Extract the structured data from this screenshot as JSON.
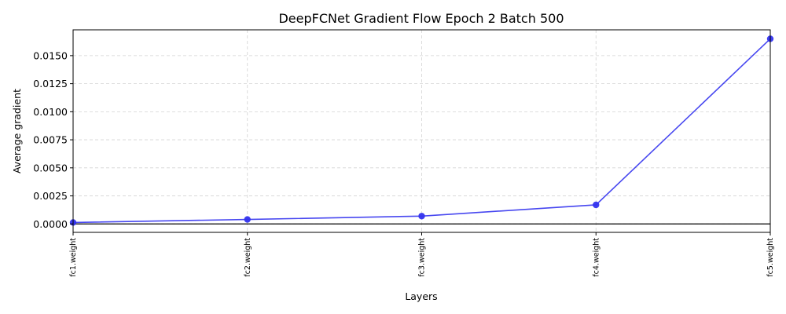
{
  "chart_data": {
    "type": "line",
    "title": "DeepFCNet Gradient Flow Epoch 2 Batch 500",
    "xlabel": "Layers",
    "ylabel": "Average gradient",
    "categories": [
      "fc1.weight",
      "fc2.weight",
      "fc3.weight",
      "fc4.weight",
      "fc5.weight"
    ],
    "series": [
      {
        "values": [
          0.00013,
          0.0004,
          0.0007,
          0.0017,
          0.0165
        ],
        "color": "#3333ee"
      }
    ],
    "ylim": [
      -0.00075,
      0.0173
    ],
    "yticks": [
      0.0,
      0.0025,
      0.005,
      0.0075,
      0.01,
      0.0125,
      0.015
    ],
    "ytick_labels": [
      "0.0000",
      "0.0025",
      "0.0050",
      "0.0075",
      "0.0100",
      "0.0125",
      "0.0150"
    ],
    "zero_line": true,
    "grid": true,
    "marker": "circle"
  }
}
